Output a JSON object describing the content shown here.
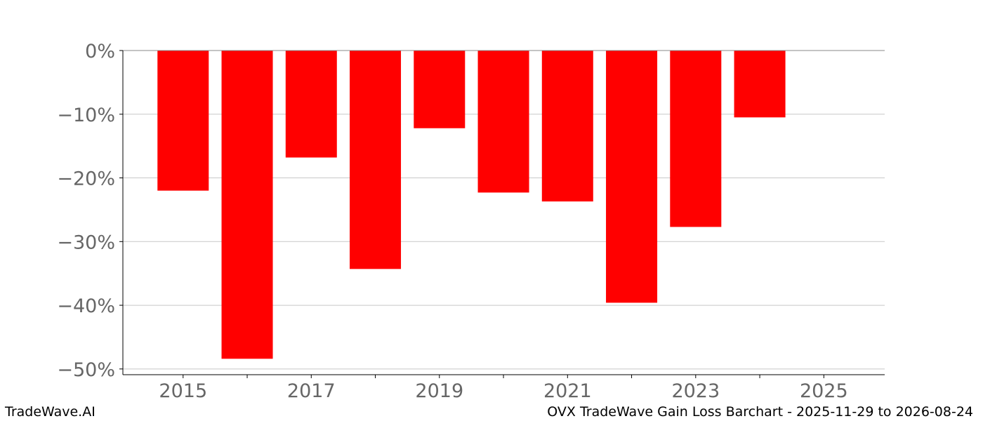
{
  "footer": {
    "brand": "TradeWave.AI",
    "caption": "OVX TradeWave Gain Loss Barchart - 2025-11-29 to 2026-08-24"
  },
  "chart_data": {
    "type": "bar",
    "categories": [
      2015,
      2016,
      2017,
      2018,
      2019,
      2020,
      2021,
      2022,
      2023,
      2024
    ],
    "values": [
      -22.0,
      -48.4,
      -16.8,
      -34.3,
      -12.2,
      -22.3,
      -23.7,
      -39.6,
      -27.7,
      -10.5
    ],
    "unit": "%",
    "bar_color": "#ff0000",
    "xlim": [
      2014.06,
      2025.95
    ],
    "ylim": [
      -50.9,
      0
    ],
    "xticks": [
      2015,
      2017,
      2019,
      2021,
      2023,
      2025
    ],
    "yticks": [
      0,
      -10,
      -20,
      -30,
      -40,
      -50
    ],
    "ytick_labels": [
      "0%",
      "−10%",
      "−20%",
      "−30%",
      "−40%",
      "−50%"
    ],
    "grid": "horizontal",
    "title": "",
    "xlabel": "",
    "ylabel": ""
  }
}
